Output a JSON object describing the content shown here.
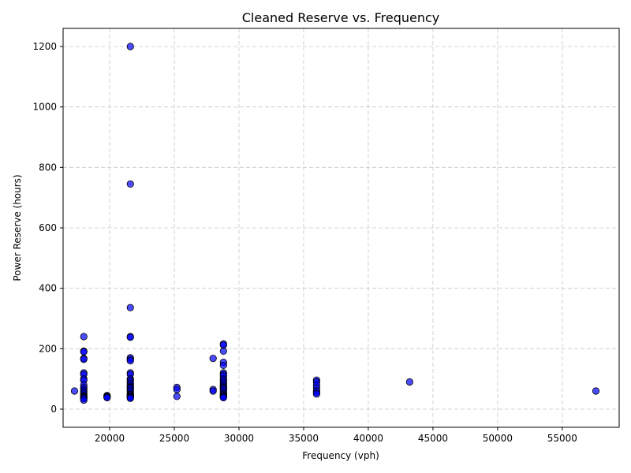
{
  "chart_data": {
    "type": "scatter",
    "title": "Cleaned Reserve vs. Frequency",
    "xlabel": "Frequency (vph)",
    "ylabel": "Power Reserve (hours)",
    "xlim": [
      16400,
      59400
    ],
    "ylim": [
      -60,
      1260
    ],
    "xticks": [
      20000,
      25000,
      30000,
      35000,
      40000,
      45000,
      50000,
      55000
    ],
    "yticks": [
      0,
      200,
      400,
      600,
      800,
      1000,
      1200
    ],
    "grid": true,
    "point_color": "#0000ff",
    "edge_color": "#000000",
    "series": [
      {
        "points": [
          [
            17280,
            60
          ],
          [
            18000,
            240
          ],
          [
            18000,
            192
          ],
          [
            18000,
            190
          ],
          [
            18000,
            168
          ],
          [
            18000,
            165
          ],
          [
            18000,
            120
          ],
          [
            18000,
            115
          ],
          [
            18000,
            100
          ],
          [
            18000,
            96
          ],
          [
            18000,
            80
          ],
          [
            18000,
            72
          ],
          [
            18000,
            65
          ],
          [
            18000,
            60
          ],
          [
            18000,
            55
          ],
          [
            18000,
            50
          ],
          [
            18000,
            45
          ],
          [
            18000,
            42
          ],
          [
            18000,
            40
          ],
          [
            18000,
            38
          ],
          [
            18000,
            35
          ],
          [
            18000,
            30
          ],
          [
            19800,
            45
          ],
          [
            19800,
            42
          ],
          [
            19800,
            40
          ],
          [
            19800,
            38
          ],
          [
            21600,
            1200
          ],
          [
            21600,
            745
          ],
          [
            21600,
            336
          ],
          [
            21600,
            240
          ],
          [
            21600,
            238
          ],
          [
            21600,
            170
          ],
          [
            21600,
            165
          ],
          [
            21600,
            160
          ],
          [
            21600,
            120
          ],
          [
            21600,
            115
          ],
          [
            21600,
            100
          ],
          [
            21600,
            96
          ],
          [
            21600,
            90
          ],
          [
            21600,
            85
          ],
          [
            21600,
            80
          ],
          [
            21600,
            75
          ],
          [
            21600,
            72
          ],
          [
            21600,
            70
          ],
          [
            21600,
            65
          ],
          [
            21600,
            60
          ],
          [
            21600,
            55
          ],
          [
            21600,
            50
          ],
          [
            21600,
            48
          ],
          [
            21600,
            45
          ],
          [
            21600,
            42
          ],
          [
            21600,
            40
          ],
          [
            21600,
            38
          ],
          [
            21600,
            36
          ],
          [
            25200,
            72
          ],
          [
            25200,
            65
          ],
          [
            25200,
            42
          ],
          [
            28000,
            168
          ],
          [
            28000,
            65
          ],
          [
            28000,
            60
          ],
          [
            28800,
            216
          ],
          [
            28800,
            212
          ],
          [
            28800,
            192
          ],
          [
            28800,
            155
          ],
          [
            28800,
            145
          ],
          [
            28800,
            120
          ],
          [
            28800,
            115
          ],
          [
            28800,
            110
          ],
          [
            28800,
            100
          ],
          [
            28800,
            96
          ],
          [
            28800,
            90
          ],
          [
            28800,
            85
          ],
          [
            28800,
            80
          ],
          [
            28800,
            75
          ],
          [
            28800,
            72
          ],
          [
            28800,
            70
          ],
          [
            28800,
            65
          ],
          [
            28800,
            60
          ],
          [
            28800,
            55
          ],
          [
            28800,
            50
          ],
          [
            28800,
            48
          ],
          [
            28800,
            45
          ],
          [
            28800,
            42
          ],
          [
            28800,
            40
          ],
          [
            28800,
            38
          ],
          [
            36000,
            96
          ],
          [
            36000,
            90
          ],
          [
            36000,
            80
          ],
          [
            36000,
            70
          ],
          [
            36000,
            60
          ],
          [
            36000,
            55
          ],
          [
            36000,
            50
          ],
          [
            43200,
            90
          ],
          [
            57600,
            60
          ]
        ]
      }
    ]
  }
}
